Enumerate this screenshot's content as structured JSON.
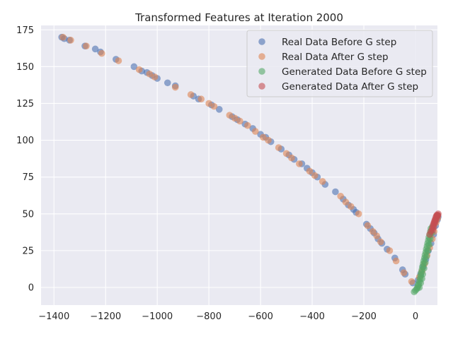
{
  "chart_data": {
    "type": "scatter",
    "title": "Transformed Features at Iteration 2000",
    "xlabel": "",
    "ylabel": "",
    "xlim": [
      -1450,
      85
    ],
    "ylim": [
      -12,
      178
    ],
    "xticks": [
      -1400,
      -1200,
      -1000,
      -800,
      -600,
      -400,
      -200,
      0
    ],
    "yticks": [
      0,
      25,
      50,
      75,
      100,
      125,
      150,
      175
    ],
    "xtick_labels": [
      "−1400",
      "−1200",
      "−1000",
      "−800",
      "−600",
      "−400",
      "−200",
      "0"
    ],
    "ytick_labels": [
      "0",
      "25",
      "50",
      "75",
      "100",
      "125",
      "150",
      "175"
    ],
    "grid": true,
    "legend_position": "top-right",
    "series": [
      {
        "name": "Real Data Before G step",
        "color": "#4c72b0",
        "points": [
          [
            -1370,
            170
          ],
          [
            -1360,
            169
          ],
          [
            -1340,
            168
          ],
          [
            -1280,
            164
          ],
          [
            -1240,
            162
          ],
          [
            -1220,
            160
          ],
          [
            -1160,
            155
          ],
          [
            -1090,
            150
          ],
          [
            -1060,
            147
          ],
          [
            -1040,
            146
          ],
          [
            -1020,
            144
          ],
          [
            -1000,
            142
          ],
          [
            -960,
            139
          ],
          [
            -930,
            137
          ],
          [
            -860,
            130
          ],
          [
            -840,
            128
          ],
          [
            -790,
            124
          ],
          [
            -760,
            121
          ],
          [
            -710,
            116
          ],
          [
            -690,
            114
          ],
          [
            -660,
            111
          ],
          [
            -630,
            108
          ],
          [
            -600,
            104
          ],
          [
            -580,
            102
          ],
          [
            -560,
            99
          ],
          [
            -520,
            94
          ],
          [
            -490,
            90
          ],
          [
            -470,
            87
          ],
          [
            -440,
            84
          ],
          [
            -420,
            81
          ],
          [
            -400,
            78
          ],
          [
            -380,
            75
          ],
          [
            -350,
            70
          ],
          [
            -310,
            65
          ],
          [
            -280,
            60
          ],
          [
            -260,
            56
          ],
          [
            -240,
            53
          ],
          [
            -230,
            51
          ],
          [
            -190,
            43
          ],
          [
            -175,
            40
          ],
          [
            -160,
            37
          ],
          [
            -145,
            33
          ],
          [
            -130,
            30
          ],
          [
            -110,
            26
          ],
          [
            -80,
            20
          ],
          [
            -50,
            12
          ],
          [
            -40,
            9
          ],
          [
            -10,
            3
          ],
          [
            10,
            5
          ],
          [
            20,
            9
          ],
          [
            30,
            14
          ],
          [
            40,
            19
          ],
          [
            50,
            25
          ],
          [
            60,
            30
          ],
          [
            70,
            36
          ],
          [
            78,
            42
          ],
          [
            85,
            46
          ],
          [
            88,
            48
          ]
        ]
      },
      {
        "name": "Real Data After G step",
        "color": "#dd8452",
        "points": [
          [
            -1365,
            170
          ],
          [
            -1335,
            168
          ],
          [
            -1275,
            164
          ],
          [
            -1215,
            159
          ],
          [
            -1150,
            154
          ],
          [
            -1070,
            148
          ],
          [
            -1030,
            145
          ],
          [
            -1010,
            143
          ],
          [
            -930,
            136
          ],
          [
            -870,
            131
          ],
          [
            -830,
            128
          ],
          [
            -800,
            125
          ],
          [
            -780,
            123
          ],
          [
            -720,
            117
          ],
          [
            -700,
            115
          ],
          [
            -680,
            113
          ],
          [
            -650,
            110
          ],
          [
            -620,
            106
          ],
          [
            -590,
            102
          ],
          [
            -570,
            100
          ],
          [
            -530,
            95
          ],
          [
            -500,
            91
          ],
          [
            -480,
            88
          ],
          [
            -450,
            84
          ],
          [
            -410,
            79
          ],
          [
            -390,
            76
          ],
          [
            -360,
            72
          ],
          [
            -290,
            62
          ],
          [
            -270,
            58
          ],
          [
            -250,
            55
          ],
          [
            -220,
            50
          ],
          [
            -185,
            42
          ],
          [
            -165,
            38
          ],
          [
            -150,
            35
          ],
          [
            -135,
            31
          ],
          [
            -100,
            25
          ],
          [
            -75,
            18
          ],
          [
            -45,
            10
          ],
          [
            -15,
            4
          ],
          [
            15,
            7
          ],
          [
            25,
            11
          ],
          [
            35,
            16
          ],
          [
            45,
            22
          ],
          [
            55,
            27
          ],
          [
            65,
            33
          ],
          [
            72,
            38
          ],
          [
            80,
            44
          ],
          [
            86,
            47
          ]
        ]
      },
      {
        "name": "Generated Data Before G step",
        "color": "#55a868",
        "points": [
          [
            -5,
            -3
          ],
          [
            0,
            -2
          ],
          [
            5,
            -1
          ],
          [
            8,
            0
          ],
          [
            10,
            1
          ],
          [
            12,
            2
          ],
          [
            15,
            4
          ],
          [
            18,
            6
          ],
          [
            20,
            8
          ],
          [
            22,
            10
          ],
          [
            25,
            12
          ],
          [
            27,
            14
          ],
          [
            30,
            16
          ],
          [
            32,
            18
          ],
          [
            35,
            20
          ],
          [
            37,
            22
          ],
          [
            40,
            24
          ],
          [
            42,
            26
          ],
          [
            45,
            28
          ],
          [
            47,
            30
          ],
          [
            50,
            32
          ],
          [
            52,
            34
          ],
          [
            55,
            36
          ],
          [
            58,
            38
          ],
          [
            60,
            40
          ],
          [
            15,
            0
          ],
          [
            20,
            3
          ],
          [
            25,
            6
          ],
          [
            28,
            9
          ],
          [
            33,
            13
          ],
          [
            38,
            17
          ],
          [
            43,
            21
          ],
          [
            48,
            25
          ],
          [
            53,
            29
          ],
          [
            57,
            33
          ],
          [
            62,
            37
          ],
          [
            65,
            41
          ]
        ]
      },
      {
        "name": "Generated Data After G step",
        "color": "#c44e52",
        "points": [
          [
            55,
            36
          ],
          [
            60,
            38
          ],
          [
            65,
            40
          ],
          [
            68,
            42
          ],
          [
            70,
            43
          ],
          [
            72,
            44
          ],
          [
            74,
            45
          ],
          [
            76,
            46
          ],
          [
            78,
            47
          ],
          [
            80,
            48
          ],
          [
            82,
            49
          ],
          [
            84,
            49
          ],
          [
            86,
            49
          ],
          [
            88,
            50
          ],
          [
            75,
            44
          ],
          [
            79,
            46
          ],
          [
            83,
            48
          ],
          [
            87,
            49
          ],
          [
            71,
            41
          ],
          [
            67,
            39
          ]
        ]
      }
    ]
  }
}
